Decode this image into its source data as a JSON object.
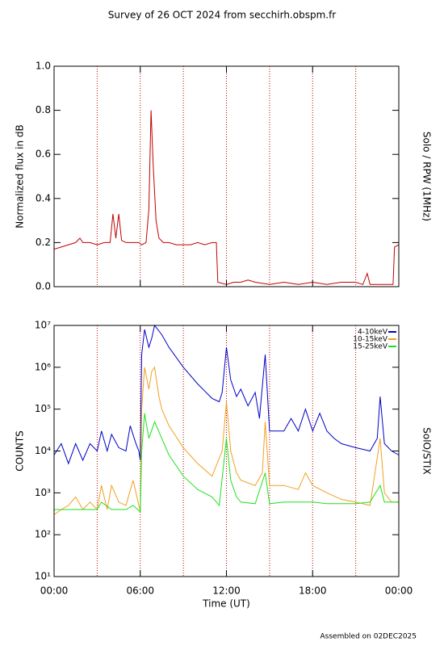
{
  "title": "Survey of 26 OCT 2024 from secchirh.obspm.fr",
  "footer": "Assembled on 02DEC2025",
  "chart_data": [
    {
      "type": "line",
      "ylabel": "Normalized flux in dB",
      "right_label": "Solo / RPW (1MHz)",
      "xlim": [
        0,
        24
      ],
      "xticks": [
        0,
        6,
        12,
        18,
        24
      ],
      "xgrid": [
        3,
        6,
        9,
        12,
        15,
        18,
        21
      ],
      "grid_color": "#c00000",
      "ylim": [
        0,
        1
      ],
      "yticks": [
        {
          "value": 0,
          "label": "0.0"
        },
        0.2,
        0.4,
        0.6,
        0.8,
        {
          "value": 1,
          "label": "1.0"
        }
      ],
      "log": false,
      "x": [
        0,
        0.5,
        1,
        1.5,
        1.8,
        2,
        2.5,
        3,
        3.5,
        3.9,
        4.1,
        4.3,
        4.5,
        4.7,
        5,
        5.5,
        5.9,
        6.1,
        6.4,
        6.6,
        6.75,
        6.9,
        7.1,
        7.3,
        7.6,
        8,
        8.5,
        9,
        9.5,
        10,
        10.5,
        11,
        11.3,
        11.4,
        12,
        12.5,
        13,
        13.5,
        14,
        15,
        16,
        17,
        18,
        19,
        20,
        21,
        21.5,
        21.8,
        22,
        23,
        23.6,
        23.7,
        24
      ],
      "series": [
        {
          "color": "#c00000",
          "values": [
            0.17,
            0.18,
            0.19,
            0.2,
            0.22,
            0.2,
            0.2,
            0.19,
            0.2,
            0.2,
            0.33,
            0.22,
            0.33,
            0.21,
            0.2,
            0.2,
            0.2,
            0.19,
            0.2,
            0.35,
            0.8,
            0.55,
            0.3,
            0.22,
            0.2,
            0.2,
            0.19,
            0.19,
            0.19,
            0.2,
            0.19,
            0.2,
            0.2,
            0.02,
            0.01,
            0.02,
            0.02,
            0.03,
            0.02,
            0.01,
            0.02,
            0.01,
            0.02,
            0.01,
            0.02,
            0.02,
            0.01,
            0.06,
            0.01,
            0.01,
            0.01,
            0.18,
            0.19
          ]
        }
      ]
    },
    {
      "type": "line",
      "ylabel": "COUNTS",
      "right_label": "SolO/STIX",
      "xlabel": "Time (UT)",
      "xlim": [
        0,
        24
      ],
      "xticks": [
        {
          "value": 0,
          "label": "00:00"
        },
        {
          "value": 6,
          "label": "06:00"
        },
        {
          "value": 12,
          "label": "12:00"
        },
        {
          "value": 18,
          "label": "18:00"
        },
        {
          "value": 24,
          "label": "00:00"
        }
      ],
      "xgrid": [
        3,
        6,
        9,
        12,
        15,
        18,
        21
      ],
      "grid_color": "#c00000",
      "ylim": [
        10,
        10000000
      ],
      "log": true,
      "yticks": [
        {
          "value": 10,
          "label": "10¹"
        },
        {
          "value": 100,
          "label": "10²"
        },
        {
          "value": 1000,
          "label": "10³"
        },
        {
          "value": 10000,
          "label": "10⁴"
        },
        {
          "value": 100000,
          "label": "10⁵"
        },
        {
          "value": 1000000,
          "label": "10⁶"
        },
        {
          "value": 10000000,
          "label": "10⁷"
        }
      ],
      "series": [
        {
          "name": "4-10keV",
          "color": "#0000c8",
          "x": [
            0,
            0.5,
            1,
            1.5,
            2,
            2.5,
            3,
            3.3,
            3.7,
            4,
            4.5,
            5,
            5.3,
            5.7,
            5.9,
            6,
            6.1,
            6.3,
            6.6,
            6.8,
            7,
            7.5,
            8,
            9,
            10,
            11,
            11.5,
            11.7,
            12,
            12.3,
            12.7,
            13,
            13.5,
            14,
            14.3,
            14.7,
            15,
            16,
            16.5,
            17,
            17.5,
            18,
            18.5,
            19,
            19.5,
            20,
            21,
            22,
            22.5,
            22.7,
            23,
            23.5,
            24
          ],
          "values": [
            8000,
            15000,
            5000,
            15000,
            6000,
            15000,
            10000,
            30000,
            10000,
            25000,
            12000,
            10000,
            40000,
            15000,
            10000,
            6000,
            2000000,
            8000000,
            3000000,
            5000000,
            10000000,
            6000000,
            3000000,
            1000000,
            400000,
            180000,
            150000,
            250000,
            3000000,
            500000,
            200000,
            300000,
            120000,
            250000,
            60000,
            2000000,
            30000,
            30000,
            60000,
            30000,
            100000,
            30000,
            80000,
            30000,
            20000,
            15000,
            12000,
            10000,
            20000,
            200000,
            15000,
            10000,
            8000
          ]
        },
        {
          "name": "10-15keV",
          "color": "#f0a020",
          "x": [
            0,
            0.5,
            1,
            1.5,
            2,
            2.5,
            3,
            3.3,
            3.7,
            4,
            4.5,
            5,
            5.5,
            5.9,
            6,
            6.1,
            6.3,
            6.6,
            6.8,
            7,
            7.3,
            7.5,
            8,
            9,
            10,
            11,
            11.7,
            12,
            12.3,
            12.7,
            13,
            14,
            14.5,
            14.7,
            15,
            16,
            17,
            17.5,
            18,
            19,
            20,
            21,
            22,
            22.7,
            23,
            23.5,
            24
          ],
          "values": [
            300,
            400,
            500,
            800,
            400,
            600,
            400,
            1500,
            400,
            1500,
            600,
            500,
            2000,
            500,
            350,
            100000,
            1000000,
            300000,
            800000,
            1000000,
            200000,
            100000,
            40000,
            12000,
            5000,
            2500,
            10000,
            150000,
            10000,
            3000,
            2000,
            1500,
            3000,
            50000,
            1500,
            1500,
            1200,
            3000,
            1500,
            1000,
            700,
            600,
            500,
            20000,
            1000,
            600,
            600
          ]
        },
        {
          "name": "15-25keV",
          "color": "#20e020",
          "x": [
            0,
            1,
            2,
            3,
            3.3,
            4,
            5,
            5.5,
            6,
            6.1,
            6.3,
            6.6,
            7,
            7.5,
            8,
            9,
            10,
            11,
            11.5,
            12,
            12.3,
            12.7,
            13,
            14,
            14.7,
            15,
            16,
            17,
            18,
            19,
            20,
            21,
            22,
            22.7,
            23,
            24
          ],
          "values": [
            400,
            400,
            400,
            400,
            600,
            400,
            400,
            500,
            350,
            10000,
            80000,
            20000,
            50000,
            20000,
            8000,
            2500,
            1200,
            800,
            500,
            20000,
            2000,
            800,
            600,
            550,
            3000,
            550,
            600,
            600,
            600,
            550,
            550,
            550,
            600,
            1500,
            600,
            600
          ]
        }
      ]
    }
  ]
}
